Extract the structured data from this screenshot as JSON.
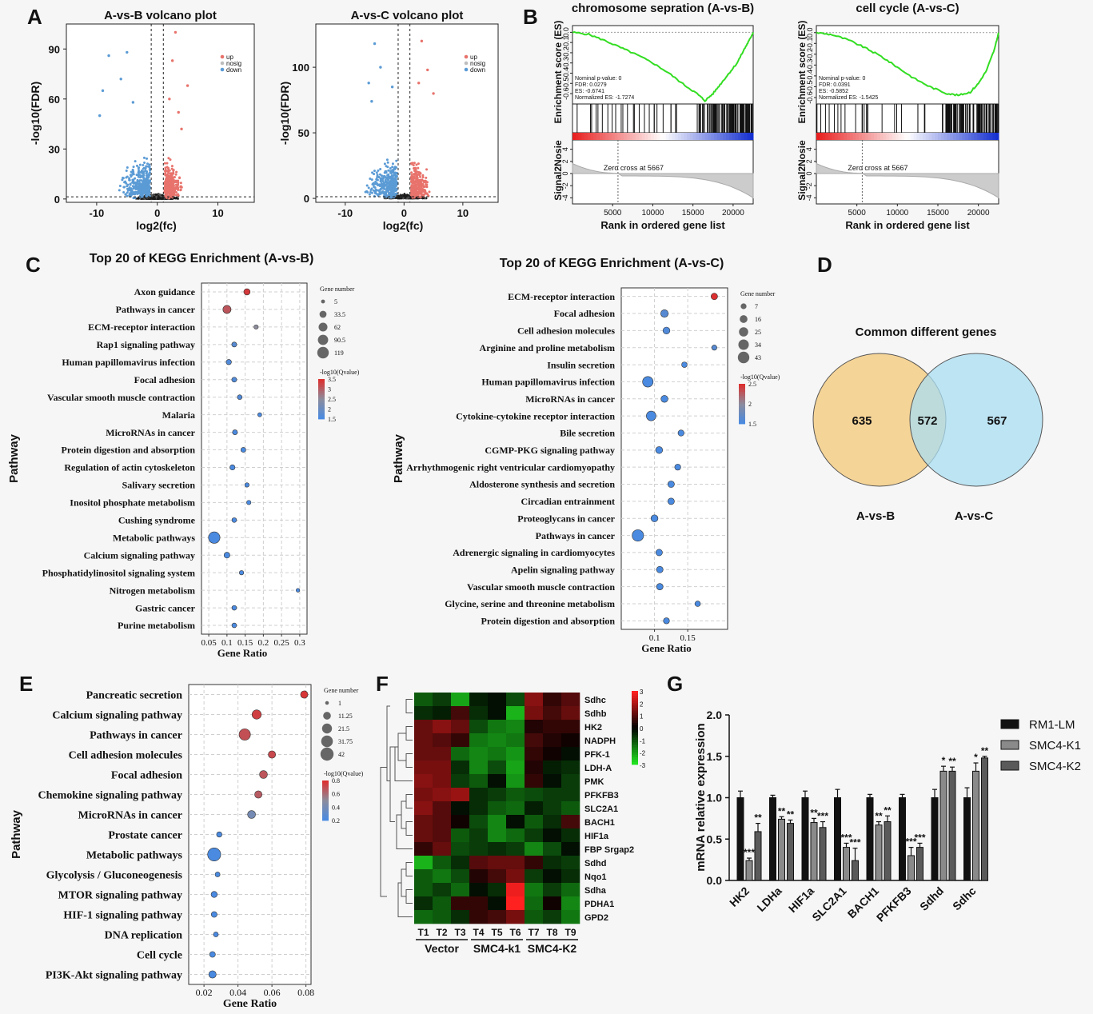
{
  "panel_letters": [
    "A",
    "B",
    "C",
    "D",
    "E",
    "F",
    "G"
  ],
  "chart_data": [
    {
      "id": "A1",
      "type": "scatter",
      "title": "A-vs-B volcano plot",
      "xlabel": "log2(fc)",
      "ylabel": "-log10(FDR)",
      "xticks": [
        -10,
        0,
        10
      ],
      "yticks": [
        0,
        30,
        60,
        90
      ],
      "xlim": [
        -15,
        16
      ],
      "ylim": [
        -2,
        105
      ],
      "legend": [
        "up",
        "nosig",
        "down"
      ],
      "colors": [
        "#e8736c",
        "#bdbdbd",
        "#5b9bd5"
      ],
      "highlight_points": [
        {
          "x": -8,
          "y": 86,
          "g": "down"
        },
        {
          "x": -5,
          "y": 88,
          "g": "down"
        },
        {
          "x": -9,
          "y": 65,
          "g": "down"
        },
        {
          "x": -6,
          "y": 72,
          "g": "down"
        },
        {
          "x": -9.5,
          "y": 50,
          "g": "down"
        },
        {
          "x": -4,
          "y": 58,
          "g": "down"
        },
        {
          "x": 3,
          "y": 100,
          "g": "up"
        },
        {
          "x": 2.5,
          "y": 83,
          "g": "up"
        },
        {
          "x": 5,
          "y": 68,
          "g": "up"
        },
        {
          "x": 2,
          "y": 60,
          "g": "up"
        },
        {
          "x": 3.5,
          "y": 52,
          "g": "up"
        },
        {
          "x": 4,
          "y": 42,
          "g": "up"
        }
      ]
    },
    {
      "id": "A2",
      "type": "scatter",
      "title": "A-vs-C volcano plot",
      "xlabel": "log2(fc)",
      "ylabel": "-log10(FDR)",
      "xticks": [
        -10,
        0,
        10
      ],
      "yticks": [
        0,
        50,
        100
      ],
      "xlim": [
        -15,
        16
      ],
      "ylim": [
        -3,
        133
      ],
      "legend": [
        "up",
        "nosig",
        "down"
      ],
      "colors": [
        "#e8736c",
        "#bdbdbd",
        "#5b9bd5"
      ],
      "highlight_points": [
        {
          "x": -5,
          "y": 118,
          "g": "down"
        },
        {
          "x": -4,
          "y": 100,
          "g": "down"
        },
        {
          "x": -6,
          "y": 88,
          "g": "down"
        },
        {
          "x": -2,
          "y": 85,
          "g": "down"
        },
        {
          "x": -5.5,
          "y": 74,
          "g": "down"
        },
        {
          "x": 3,
          "y": 120,
          "g": "up"
        },
        {
          "x": 4,
          "y": 98,
          "g": "up"
        },
        {
          "x": 2.5,
          "y": 88,
          "g": "up"
        },
        {
          "x": 5,
          "y": 80,
          "g": "up"
        }
      ]
    },
    {
      "id": "B1",
      "type": "line",
      "title": "chromosome sepration (A-vs-B)",
      "ylabel_top": "Enrichment score (ES)",
      "ylabel_bottom": "Signal2Nosie",
      "xlabel": "Rank in ordered gene list",
      "xticks": [
        5000,
        10000,
        15000,
        20000
      ],
      "xlim": [
        0,
        22500
      ],
      "es_ticks": [
        "0.0",
        "-0.1",
        "-0.2",
        "-0.3",
        "-0.4",
        "-0.5",
        "-0.6"
      ],
      "es_min": -0.67,
      "es_max": 0.05,
      "es_curve": [
        [
          0,
          0
        ],
        [
          2000,
          -0.02
        ],
        [
          4000,
          -0.08
        ],
        [
          6000,
          -0.15
        ],
        [
          8000,
          -0.22
        ],
        [
          10000,
          -0.3
        ],
        [
          12000,
          -0.4
        ],
        [
          14000,
          -0.52
        ],
        [
          15500,
          -0.6
        ],
        [
          16500,
          -0.67
        ],
        [
          17500,
          -0.6
        ],
        [
          18500,
          -0.5
        ],
        [
          19500,
          -0.4
        ],
        [
          20500,
          -0.3
        ],
        [
          21500,
          -0.15
        ],
        [
          22000,
          -0.08
        ],
        [
          22500,
          0
        ]
      ],
      "stats": [
        "Nominal p-value: 0",
        "FDR: 0.0279",
        "ES: -0.6741",
        "Normalized ES: -1.7274"
      ],
      "s2n_ticks": [
        "4",
        "2",
        "0",
        "-2",
        "-4"
      ],
      "s2n_lim": [
        -5,
        5
      ],
      "zero_cross": 5667,
      "zero_cross_label": "Zero cross at 5667"
    },
    {
      "id": "B2",
      "type": "line",
      "title": "cell cycle (A-vs-C)",
      "ylabel_top": "Enrichment score (ES)",
      "ylabel_bottom": "Signal2Nosie",
      "xlabel": "Rank in ordered gene list",
      "xticks": [
        5000,
        10000,
        15000,
        20000
      ],
      "xlim": [
        0,
        22500
      ],
      "es_ticks": [
        "0.0",
        "-0.1",
        "-0.2",
        "-0.3",
        "-0.4",
        "-0.5",
        "-0.6"
      ],
      "es_min": -0.63,
      "es_max": 0.05,
      "es_curve": [
        [
          0,
          0
        ],
        [
          2000,
          -0.02
        ],
        [
          4000,
          -0.07
        ],
        [
          6000,
          -0.14
        ],
        [
          8000,
          -0.22
        ],
        [
          10000,
          -0.32
        ],
        [
          12000,
          -0.42
        ],
        [
          14000,
          -0.5
        ],
        [
          16000,
          -0.56
        ],
        [
          17500,
          -0.58
        ],
        [
          19000,
          -0.55
        ],
        [
          20000,
          -0.47
        ],
        [
          21000,
          -0.35
        ],
        [
          22000,
          -0.15
        ],
        [
          22500,
          0
        ]
      ],
      "stats": [
        "Nominal p-value: 0",
        "FDR: 0.0391",
        "ES: -0.5852",
        "Normalized ES: -1.5425"
      ],
      "s2n_ticks": [
        "4",
        "2",
        "0",
        "-2",
        "-4"
      ],
      "s2n_lim": [
        -5,
        5
      ],
      "zero_cross": 5667,
      "zero_cross_label": "Zero cross at 5667"
    },
    {
      "id": "C1",
      "type": "scatter",
      "title": "Top 20 of KEGG Enrichment (A-vs-B)",
      "xlabel": "Gene Ratio",
      "ylabel": "Pathway",
      "xticks": [
        0.05,
        0.1,
        0.15,
        0.2,
        0.25,
        0.3
      ],
      "xlim": [
        0.03,
        0.32
      ],
      "categories": [
        "Axon guidance",
        "Pathways in cancer",
        "ECM-receptor interaction",
        "Rap1 signaling pathway",
        "Human papillomavirus infection",
        "Focal adhesion",
        "Vascular smooth muscle contraction",
        "Malaria",
        "MicroRNAs in cancer",
        "Protein digestion and absorption",
        "Regulation of actin cytoskeleton",
        "Salivary secretion",
        "Inositol phosphate metabolism",
        "Cushing syndrome",
        "Metabolic pathways",
        "Calcium signaling pathway",
        "Phosphatidylinositol signaling system",
        "Nitrogen metabolism",
        "Gastric cancer",
        "Purine metabolism"
      ],
      "x": [
        0.155,
        0.1,
        0.18,
        0.12,
        0.105,
        0.12,
        0.135,
        0.19,
        0.122,
        0.145,
        0.115,
        0.155,
        0.16,
        0.12,
        0.065,
        0.1,
        0.14,
        0.295,
        0.12,
        0.12
      ],
      "size": [
        25,
        50,
        8,
        12,
        15,
        12,
        10,
        6,
        12,
        12,
        14,
        8,
        8,
        10,
        119,
        20,
        8,
        4,
        10,
        10
      ],
      "qvalue": [
        3.4,
        3.1,
        2.5,
        1.7,
        1.6,
        1.6,
        1.6,
        1.5,
        1.5,
        1.5,
        1.5,
        1.5,
        1.5,
        1.5,
        1.5,
        1.5,
        1.5,
        1.5,
        1.5,
        1.5
      ],
      "size_legend_title": "Gene number",
      "size_legend": [
        5,
        33.5,
        62,
        90.5,
        119
      ],
      "color_legend_title": "-log10(Qvalue)",
      "color_legend": [
        3.5,
        3,
        2.5,
        2,
        1.5
      ],
      "color_range": [
        1.5,
        3.5
      ]
    },
    {
      "id": "C2",
      "type": "scatter",
      "title": "Top 20 of KEGG Enrichment (A-vs-C)",
      "xlabel": "Gene Ratio",
      "ylabel": "Pathway",
      "xticks": [
        0.1,
        0.15
      ],
      "xlim": [
        0.05,
        0.21
      ],
      "categories": [
        "ECM-receptor interaction",
        "Focal adhesion",
        "Cell adhesion molecules",
        "Arginine and proline metabolism",
        "Insulin secretion",
        "Human papillomavirus infection",
        "MicroRNAs in cancer",
        "Cytokine-cytokine receptor interaction",
        "Bile secretion",
        "CGMP-PKG signaling pathway",
        "Arrhythmogenic right ventricular cardiomyopathy",
        "Aldosterone synthesis and secretion",
        "Circadian entrainment",
        "Proteoglycans in cancer",
        "Pathways in cancer",
        "Adrenergic signaling in cardiomyocytes",
        "Apelin signaling pathway",
        "Vascular smooth muscle contraction",
        "Glycine, serine and threonine metabolism",
        "Protein digestion and absorption"
      ],
      "x": [
        0.19,
        0.115,
        0.118,
        0.19,
        0.145,
        0.09,
        0.115,
        0.095,
        0.14,
        0.107,
        0.135,
        0.125,
        0.125,
        0.1,
        0.075,
        0.107,
        0.108,
        0.108,
        0.165,
        0.118
      ],
      "size": [
        10,
        15,
        12,
        5,
        6,
        35,
        12,
        28,
        8,
        12,
        8,
        10,
        10,
        12,
        43,
        10,
        10,
        10,
        6,
        8
      ],
      "qvalue": [
        2.5,
        1.6,
        1.55,
        1.6,
        1.5,
        1.5,
        1.5,
        1.5,
        1.5,
        1.5,
        1.5,
        1.5,
        1.5,
        1.5,
        1.5,
        1.5,
        1.5,
        1.5,
        1.5,
        1.5
      ],
      "size_legend_title": "Gene number",
      "size_legend": [
        7,
        16,
        25,
        34,
        43
      ],
      "color_legend_title": "-log10(Qvalue)",
      "color_legend": [
        2.5,
        2,
        1.5
      ],
      "color_range": [
        1.5,
        2.5
      ]
    },
    {
      "id": "D",
      "type": "venn",
      "title": "Common different genes",
      "sets": [
        "A-vs-B",
        "A-vs-C"
      ],
      "only_left": 635,
      "both": 572,
      "only_right": 567
    },
    {
      "id": "E",
      "type": "scatter",
      "title": "",
      "xlabel": "Gene Ratio",
      "ylabel": "Pathway",
      "xticks": [
        0.02,
        0.04,
        0.06,
        0.08
      ],
      "xlim": [
        0.011,
        0.083
      ],
      "categories": [
        "Pancreatic secretion",
        "Calcium signaling pathway",
        "Pathways in cancer",
        "Cell adhesion molecules",
        "Focal adhesion",
        "Chemokine signaling pathway",
        "MicroRNAs in cancer",
        "Prostate cancer",
        "Metabolic pathways",
        "Glycolysis / Gluconeogenesis",
        "MTOR signaling pathway",
        "HIF-1 signaling pathway",
        "DNA replication",
        "Cell cycle",
        "PI3K-Akt signaling pathway"
      ],
      "x": [
        0.079,
        0.051,
        0.044,
        0.06,
        0.055,
        0.052,
        0.048,
        0.029,
        0.026,
        0.028,
        0.026,
        0.026,
        0.027,
        0.025,
        0.025
      ],
      "size": [
        10,
        18,
        30,
        10,
        12,
        10,
        12,
        4,
        42,
        3,
        6,
        5,
        3,
        5,
        10
      ],
      "qvalue": [
        0.78,
        0.75,
        0.7,
        0.72,
        0.68,
        0.66,
        0.4,
        0.2,
        0.2,
        0.2,
        0.2,
        0.2,
        0.2,
        0.2,
        0.2
      ],
      "size_legend_title": "Gene number",
      "size_legend": [
        1,
        11.25,
        21.5,
        31.75,
        42
      ],
      "color_legend_title": "-log10(Qvalue)",
      "color_legend": [
        0.8,
        0.6,
        0.4,
        0.2
      ],
      "color_range": [
        0.2,
        0.8
      ]
    },
    {
      "id": "F",
      "type": "heatmap",
      "rows": [
        "Sdhc",
        "Sdhb",
        "HK2",
        "NADPH",
        "PFK-1",
        "LDH-A",
        "PMK",
        "PFKFB3",
        "SLC2A1",
        "BACH1",
        "HIF1a",
        "FBP Srgap2",
        "Sdhd",
        "Nqo1",
        "Sdha",
        "PDHA1",
        "GPD2"
      ],
      "columns": [
        "T1",
        "T2",
        "T3",
        "T4",
        "T5",
        "T6",
        "T7",
        "T8",
        "T9"
      ],
      "groups": [
        {
          "label": "Vector",
          "start": 0,
          "end": 2
        },
        {
          "label": "SMC4-k1",
          "start": 3,
          "end": 5
        },
        {
          "label": "SMC4-K2",
          "start": 6,
          "end": 8
        }
      ],
      "scale_ticks": [
        3,
        2,
        1,
        0,
        -1,
        -2,
        -3
      ],
      "scale_range": [
        -3,
        3
      ],
      "values": [
        [
          -1.2,
          -0.8,
          -2.2,
          -0.4,
          -0.2,
          -1.0,
          1.6,
          0.6,
          1.0
        ],
        [
          -0.6,
          -0.4,
          0.8,
          -0.6,
          -0.2,
          -2.4,
          1.4,
          0.8,
          1.2
        ],
        [
          1.2,
          1.6,
          1.2,
          -1.0,
          -1.6,
          -1.8,
          0.4,
          0.6,
          0.6
        ],
        [
          1.2,
          1.0,
          0.6,
          -1.6,
          -1.8,
          -1.6,
          0.8,
          0.4,
          0.2
        ],
        [
          1.2,
          1.2,
          -1.4,
          -1.8,
          -1.6,
          -2.0,
          0.6,
          0.2,
          -0.2
        ],
        [
          1.4,
          1.4,
          -0.6,
          -1.8,
          -1.0,
          -2.2,
          0.4,
          -0.4,
          -0.6
        ],
        [
          1.6,
          1.4,
          -0.8,
          -1.2,
          -0.2,
          -2.0,
          0.6,
          -0.2,
          -0.8
        ],
        [
          1.4,
          1.6,
          1.8,
          -0.6,
          -0.8,
          -1.2,
          -1.0,
          -0.8,
          -0.8
        ],
        [
          1.6,
          1.0,
          -0.2,
          -0.6,
          -1.2,
          -1.4,
          -0.4,
          -0.8,
          -1.2
        ],
        [
          1.2,
          1.0,
          0.2,
          -1.0,
          -1.8,
          -0.2,
          -1.2,
          -0.6,
          0.8
        ],
        [
          1.2,
          1.0,
          -1.2,
          -0.8,
          -1.8,
          -1.4,
          -0.8,
          -0.2,
          -0.6
        ],
        [
          0.6,
          1.2,
          -1.0,
          -0.8,
          -0.6,
          -0.8,
          -1.8,
          -1.0,
          -0.2
        ],
        [
          -2.4,
          -1.2,
          -0.6,
          1.0,
          1.2,
          1.2,
          0.6,
          -0.6,
          -0.8
        ],
        [
          -1.2,
          -1.6,
          -1.0,
          0.4,
          0.8,
          1.4,
          -0.8,
          -0.2,
          -0.6
        ],
        [
          -1.2,
          -0.8,
          -1.4,
          -0.2,
          -0.6,
          2.8,
          -1.6,
          -0.8,
          -1.4
        ],
        [
          -0.6,
          -1.2,
          0.6,
          0.6,
          -0.2,
          3.0,
          -1.4,
          0.2,
          -1.8
        ],
        [
          -1.4,
          -1.2,
          -0.6,
          0.6,
          0.8,
          1.4,
          -1.2,
          -0.8,
          -1.6
        ]
      ]
    },
    {
      "id": "G",
      "type": "bar",
      "ylabel": "mRNA relative expression",
      "yticks": [
        "0.0",
        "0.5",
        "1.0",
        "1.5",
        "2.0"
      ],
      "ylim": [
        0,
        2
      ],
      "categories": [
        "HK2",
        "LDHa",
        "HIF1a",
        "SLC2A1",
        "BACH1",
        "PFKFB3",
        "Sdhd",
        "Sdhc"
      ],
      "series": [
        {
          "name": "RM1-LM",
          "values": [
            1.0,
            1.0,
            1.0,
            1.0,
            1.0,
            1.0,
            1.0,
            1.0
          ],
          "errors": [
            0.08,
            0.03,
            0.08,
            0.1,
            0.04,
            0.04,
            0.1,
            0.12
          ],
          "stars": [
            "",
            "",
            "",
            "",
            "",
            "",
            "",
            ""
          ]
        },
        {
          "name": "SMC4-K1",
          "values": [
            0.24,
            0.74,
            0.7,
            0.4,
            0.67,
            0.3,
            1.32,
            1.32
          ],
          "errors": [
            0.03,
            0.03,
            0.05,
            0.05,
            0.04,
            0.1,
            0.06,
            0.1
          ],
          "stars": [
            "***",
            "**",
            "**",
            "***",
            "**",
            "***",
            "*",
            "*"
          ]
        },
        {
          "name": "SMC4-K2",
          "values": [
            0.59,
            0.69,
            0.64,
            0.24,
            0.71,
            0.4,
            1.32,
            1.48
          ],
          "errors": [
            0.1,
            0.04,
            0.07,
            0.15,
            0.07,
            0.05,
            0.05,
            0.02
          ],
          "stars": [
            "**",
            "**",
            "***",
            "***",
            "**",
            "***",
            "**",
            "**"
          ]
        }
      ]
    }
  ]
}
